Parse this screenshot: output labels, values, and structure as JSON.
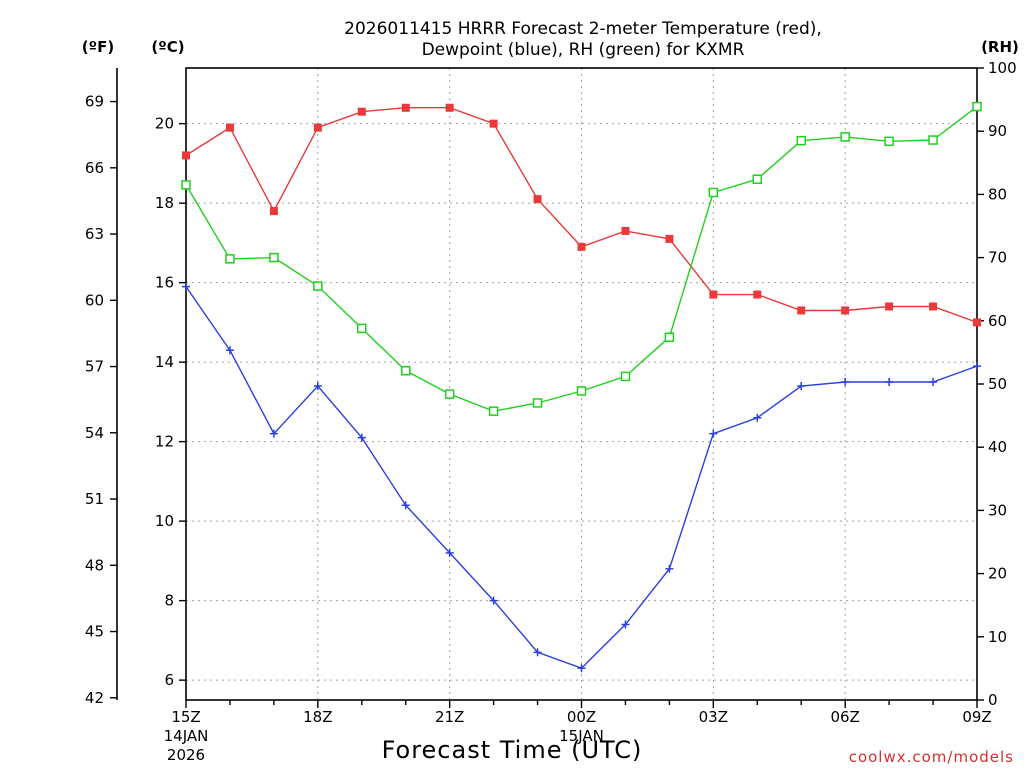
{
  "chart_data": {
    "type": "line",
    "title_line1": "2026011415 HRRR Forecast 2-meter Temperature (red),",
    "title_line2": "Dewpoint (blue), RH (green) for KXMR",
    "xlabel": "Forecast Time (UTC)",
    "credit": "coolwx.com/models",
    "units": {
      "fahrenheit": "(ºF)",
      "celsius": "(ºC)",
      "rh": "(RH)"
    },
    "x_hours": [
      15,
      16,
      17,
      18,
      19,
      20,
      21,
      22,
      23,
      24,
      25,
      26,
      27,
      28,
      29,
      30,
      31,
      32,
      33
    ],
    "x_range": [
      15,
      33
    ],
    "x_ticks": [
      {
        "hour": 15,
        "label": "15Z",
        "sub1": "14JAN",
        "sub2": "2026"
      },
      {
        "hour": 18,
        "label": "18Z",
        "sub1": "",
        "sub2": ""
      },
      {
        "hour": 21,
        "label": "21Z",
        "sub1": "",
        "sub2": ""
      },
      {
        "hour": 24,
        "label": "00Z",
        "sub1": "15JAN",
        "sub2": ""
      },
      {
        "hour": 27,
        "label": "03Z",
        "sub1": "",
        "sub2": ""
      },
      {
        "hour": 30,
        "label": "06Z",
        "sub1": "",
        "sub2": ""
      },
      {
        "hour": 33,
        "label": "09Z",
        "sub1": "",
        "sub2": ""
      }
    ],
    "celsius_range": [
      5.5,
      21.4
    ],
    "celsius_ticks": [
      6,
      8,
      10,
      12,
      14,
      16,
      18,
      20
    ],
    "fahrenheit_ticks": [
      42,
      45,
      48,
      51,
      54,
      57,
      60,
      63,
      66,
      69
    ],
    "rh_range": [
      0,
      100
    ],
    "rh_ticks": [
      0,
      10,
      20,
      30,
      40,
      50,
      60,
      70,
      80,
      90,
      100
    ],
    "grid": true,
    "series": [
      {
        "name": "Temperature",
        "axis": "celsius",
        "color": "#e83a3a",
        "marker": "filled-square",
        "values": [
          19.2,
          19.9,
          17.8,
          19.9,
          20.3,
          20.4,
          20.4,
          20.0,
          18.1,
          16.9,
          17.3,
          17.1,
          15.7,
          15.7,
          15.3,
          15.3,
          15.4,
          15.4,
          15.0
        ]
      },
      {
        "name": "Dewpoint",
        "axis": "celsius",
        "color": "#2a3fe0",
        "marker": "plus",
        "values": [
          15.9,
          14.3,
          12.2,
          13.4,
          12.1,
          10.4,
          9.2,
          8.0,
          6.7,
          6.3,
          7.4,
          8.8,
          12.2,
          12.6,
          13.4,
          13.5,
          13.5,
          13.5,
          13.9
        ]
      },
      {
        "name": "RH",
        "axis": "rh",
        "color": "#20d020",
        "marker": "open-square",
        "values": [
          81.5,
          69.8,
          70.0,
          65.5,
          58.8,
          52.1,
          48.4,
          45.7,
          47.0,
          48.9,
          51.2,
          57.4,
          80.3,
          82.4,
          88.5,
          89.1,
          88.4,
          88.6,
          93.9
        ]
      }
    ]
  }
}
